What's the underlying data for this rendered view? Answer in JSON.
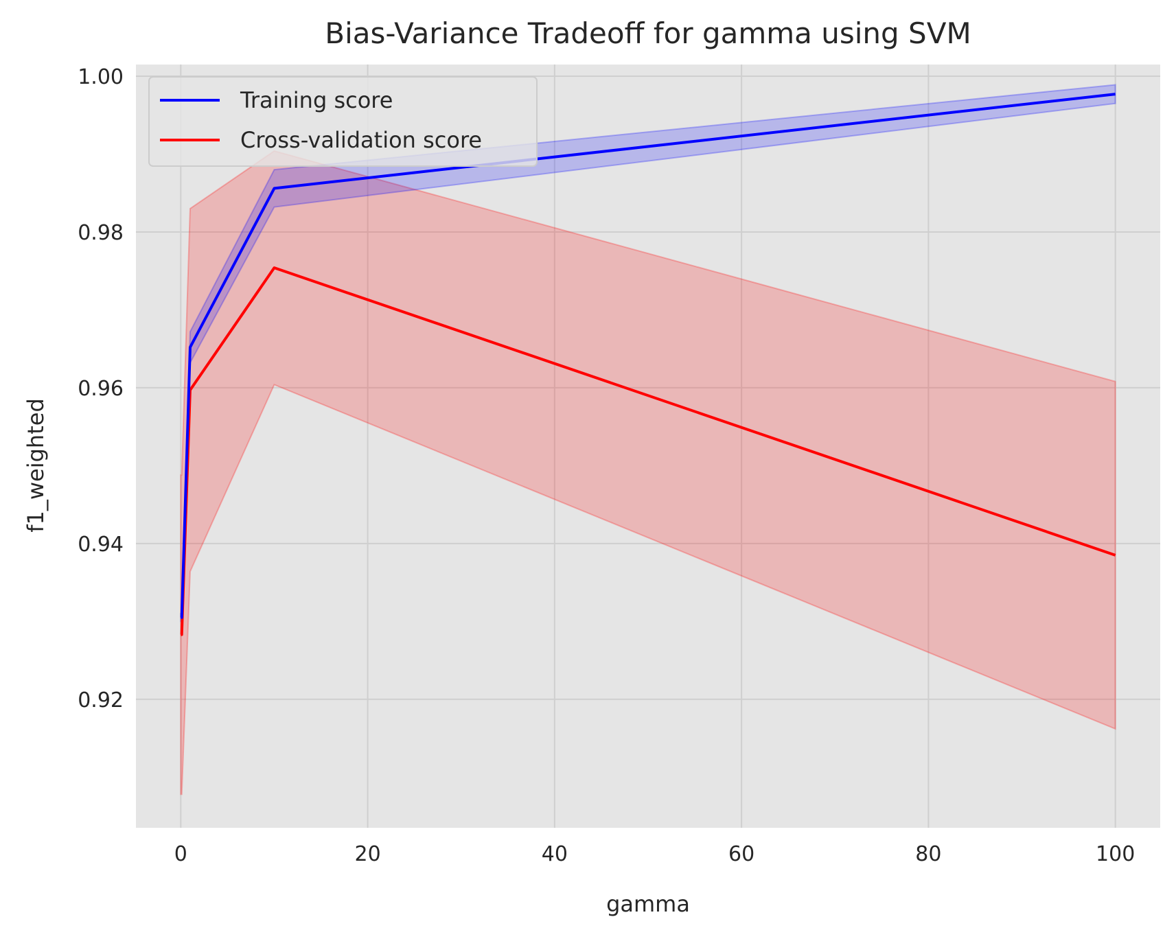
{
  "chart_data": {
    "type": "line",
    "title": "Bias-Variance Tradeoff for gamma using SVM",
    "xlabel": "gamma",
    "ylabel": "f1_weighted",
    "xlim": [
      -4.8,
      104.8
    ],
    "ylim": [
      0.9035,
      1.0015
    ],
    "xticks": [
      0,
      20,
      40,
      60,
      80,
      100
    ],
    "xtick_labels": [
      "0",
      "20",
      "40",
      "60",
      "80",
      "100"
    ],
    "yticks": [
      0.92,
      0.94,
      0.96,
      0.98,
      1.0
    ],
    "ytick_labels": [
      "0.92",
      "0.94",
      "0.96",
      "0.98",
      "1.00"
    ],
    "grid": true,
    "legend_position": "upper-left",
    "x": [
      0.0001,
      0.001,
      0.01,
      0.1,
      1,
      10,
      100
    ],
    "series": [
      {
        "name": "Training score",
        "color": "#0000ff",
        "band_color": "#0000ff",
        "mean": [
          0.9305,
          0.9305,
          0.9305,
          0.9305,
          0.9652,
          0.9856,
          0.9977
        ],
        "lower": [
          0.93,
          0.93,
          0.93,
          0.93,
          0.9632,
          0.9832,
          0.9965
        ],
        "upper": [
          0.931,
          0.931,
          0.931,
          0.931,
          0.9672,
          0.988,
          0.9989
        ]
      },
      {
        "name": "Cross-validation score",
        "color": "#ff0000",
        "band_color": "#ff0000",
        "mean": [
          0.9283,
          0.9283,
          0.9283,
          0.9283,
          0.9597,
          0.9754,
          0.9385
        ],
        "lower": [
          0.9078,
          0.9078,
          0.9078,
          0.9078,
          0.9364,
          0.9604,
          0.9162
        ],
        "upper": [
          0.9488,
          0.9488,
          0.9488,
          0.9488,
          0.983,
          0.9904,
          0.9608
        ]
      }
    ]
  }
}
